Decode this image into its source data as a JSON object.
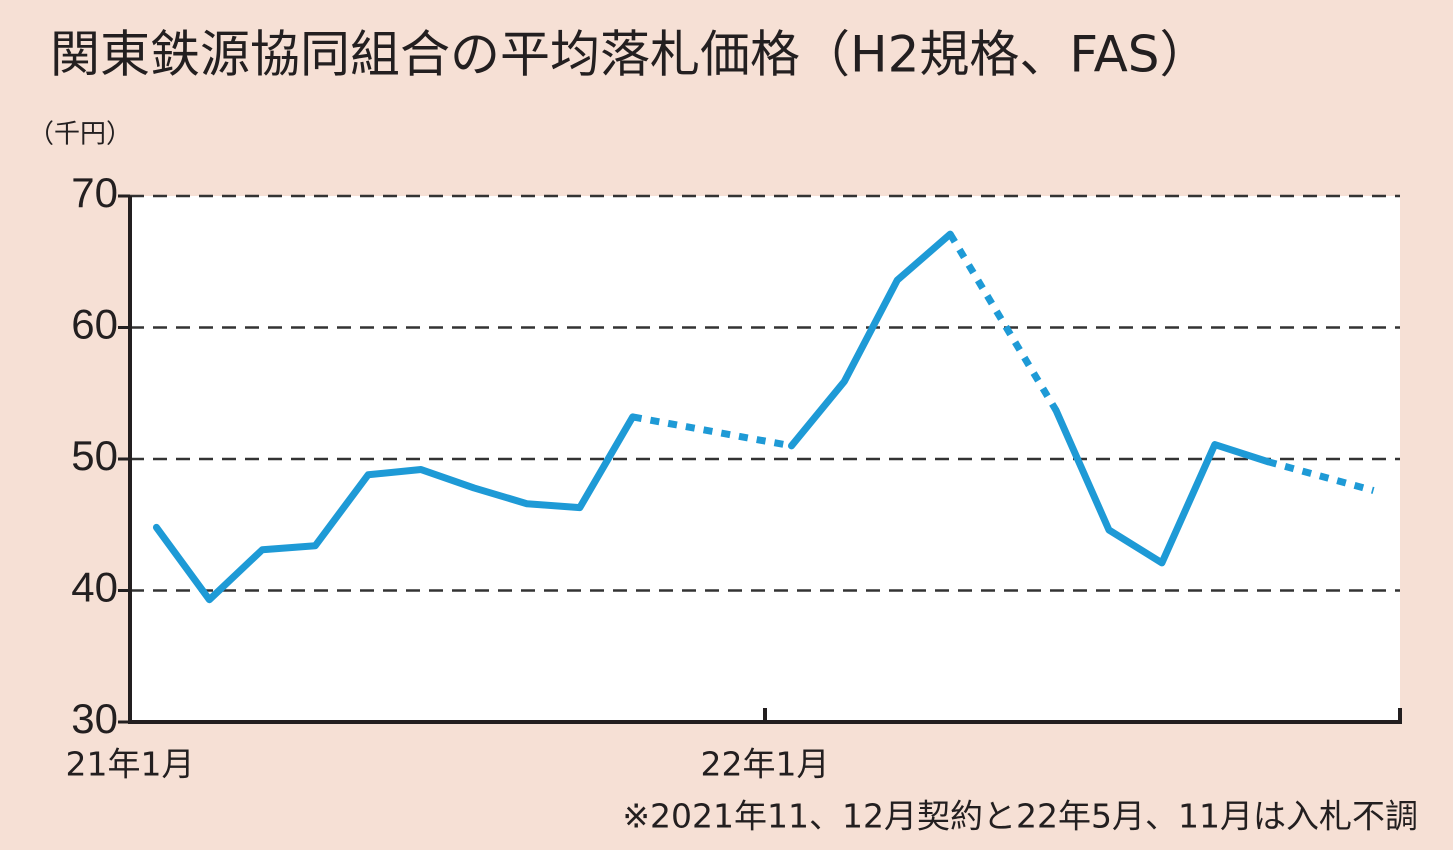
{
  "chart_data": {
    "type": "line",
    "title": "関東鉄源協同組合の平均落札価格（H2規格、FAS）",
    "y_label": "（千円）",
    "note": "※2021年11、12月契約と22年5月、11月は入札不調",
    "categories": [
      "21年1月",
      null,
      null,
      null,
      null,
      null,
      null,
      null,
      null,
      null,
      null,
      null,
      "22年1月",
      null,
      null,
      null,
      null,
      null,
      null,
      null,
      null,
      null,
      null,
      null
    ],
    "series": [
      {
        "name": null,
        "color": "#1e9ad6",
        "values": [
          44.8,
          39.3,
          43.1,
          43.4,
          48.8,
          49.2,
          47.8,
          46.6,
          46.3,
          53.2,
          null,
          null,
          51.0,
          55.9,
          63.6,
          67.1,
          null,
          53.7,
          44.6,
          42.1,
          51.1,
          49.8,
          null,
          47.6
        ]
      }
    ],
    "ylim": [
      30,
      70
    ],
    "yticks": [
      30,
      40,
      50,
      60,
      70
    ],
    "grid": true
  }
}
